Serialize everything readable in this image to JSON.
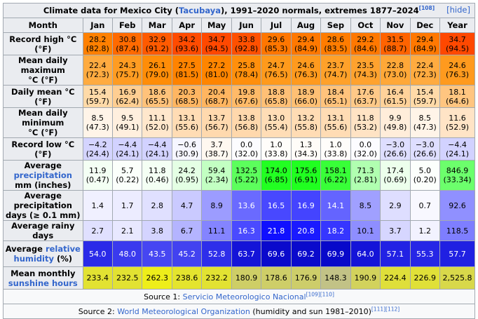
{
  "caption": {
    "prefix": "Climate data for Mexico City (",
    "location_link": "Tacubaya",
    "suffix": "), 1991–2020 normals, extremes 1877–2024",
    "ref": "[108]",
    "hide_label": "[hide]"
  },
  "header": {
    "month_label": "Month",
    "months": [
      "Jan",
      "Feb",
      "Mar",
      "Apr",
      "May",
      "Jun",
      "Jul",
      "Aug",
      "Sep",
      "Oct",
      "Nov",
      "Dec",
      "Year"
    ]
  },
  "rows": [
    {
      "name": "record-high",
      "label": [
        "Record high °C (°F)"
      ],
      "cells": [
        {
          "top": "28.2",
          "bottom": "(82.8)",
          "bg": "#ff8000",
          "fg": "#000000"
        },
        {
          "top": "30.8",
          "bottom": "(87.4)",
          "bg": "#ff6a00",
          "fg": "#000000"
        },
        {
          "top": "32.9",
          "bottom": "(91.2)",
          "bg": "#ff5a00",
          "fg": "#000000"
        },
        {
          "top": "34.2",
          "bottom": "(93.6)",
          "bg": "#ff4b00",
          "fg": "#000000"
        },
        {
          "top": "34.7",
          "bottom": "(94.5)",
          "bg": "#ff4800",
          "fg": "#000000"
        },
        {
          "top": "33.8",
          "bottom": "(92.8)",
          "bg": "#ff5000",
          "fg": "#000000"
        },
        {
          "top": "29.6",
          "bottom": "(85.3)",
          "bg": "#ff7600",
          "fg": "#000000"
        },
        {
          "top": "29.4",
          "bottom": "(84.9)",
          "bg": "#ff7800",
          "fg": "#000000"
        },
        {
          "top": "28.6",
          "bottom": "(83.5)",
          "bg": "#ff7c00",
          "fg": "#000000"
        },
        {
          "top": "29.2",
          "bottom": "(84.6)",
          "bg": "#ff7800",
          "fg": "#000000"
        },
        {
          "top": "31.5",
          "bottom": "(88.7)",
          "bg": "#ff6300",
          "fg": "#000000"
        },
        {
          "top": "29.4",
          "bottom": "(84.9)",
          "bg": "#ff7800",
          "fg": "#000000"
        },
        {
          "top": "34.7",
          "bottom": "(94.5)",
          "bg": "#ff4800",
          "fg": "#000000"
        }
      ]
    },
    {
      "name": "mean-daily-maximum",
      "label": [
        "Mean daily maximum",
        "°C (°F)"
      ],
      "cells": [
        {
          "top": "22.4",
          "bottom": "(72.3)",
          "bg": "#ffab40",
          "fg": "#000000"
        },
        {
          "top": "24.3",
          "bottom": "(75.7)",
          "bg": "#ff9c22",
          "fg": "#000000"
        },
        {
          "top": "26.1",
          "bottom": "(79.0)",
          "bg": "#ff8d08",
          "fg": "#000000"
        },
        {
          "top": "27.5",
          "bottom": "(81.5)",
          "bg": "#ff8300",
          "fg": "#000000"
        },
        {
          "top": "27.2",
          "bottom": "(81.0)",
          "bg": "#ff8500",
          "fg": "#000000"
        },
        {
          "top": "25.8",
          "bottom": "(78.4)",
          "bg": "#ff8f0c",
          "fg": "#000000"
        },
        {
          "top": "24.7",
          "bottom": "(76.5)",
          "bg": "#ff9a1c",
          "fg": "#000000"
        },
        {
          "top": "24.6",
          "bottom": "(76.3)",
          "bg": "#ff9a1e",
          "fg": "#000000"
        },
        {
          "top": "23.7",
          "bottom": "(74.7)",
          "bg": "#ffa12a",
          "fg": "#000000"
        },
        {
          "top": "23.5",
          "bottom": "(74.3)",
          "bg": "#ffa22e",
          "fg": "#000000"
        },
        {
          "top": "22.8",
          "bottom": "(73.0)",
          "bg": "#ffa838",
          "fg": "#000000"
        },
        {
          "top": "22.4",
          "bottom": "(72.3)",
          "bg": "#ffab40",
          "fg": "#000000"
        },
        {
          "top": "24.6",
          "bottom": "(76.3)",
          "bg": "#ff9a1e",
          "fg": "#000000"
        }
      ]
    },
    {
      "name": "daily-mean",
      "label": [
        "Daily mean °C (°F)"
      ],
      "cells": [
        {
          "top": "15.4",
          "bottom": "(59.7)",
          "bg": "#ffdaa8",
          "fg": "#000000"
        },
        {
          "top": "16.9",
          "bottom": "(62.4)",
          "bg": "#ffce92",
          "fg": "#000000"
        },
        {
          "top": "18.6",
          "bottom": "(65.5)",
          "bg": "#ffc27a",
          "fg": "#000000"
        },
        {
          "top": "20.3",
          "bottom": "(68.5)",
          "bg": "#ffb662",
          "fg": "#000000"
        },
        {
          "top": "20.4",
          "bottom": "(68.7)",
          "bg": "#ffb560",
          "fg": "#000000"
        },
        {
          "top": "19.8",
          "bottom": "(67.6)",
          "bg": "#ffba68",
          "fg": "#000000"
        },
        {
          "top": "18.8",
          "bottom": "(65.8)",
          "bg": "#ffc076",
          "fg": "#000000"
        },
        {
          "top": "18.9",
          "bottom": "(66.0)",
          "bg": "#ffc074",
          "fg": "#000000"
        },
        {
          "top": "18.4",
          "bottom": "(65.1)",
          "bg": "#ffc37c",
          "fg": "#000000"
        },
        {
          "top": "17.6",
          "bottom": "(63.7)",
          "bg": "#ffc988",
          "fg": "#000000"
        },
        {
          "top": "16.4",
          "bottom": "(61.5)",
          "bg": "#ffd29a",
          "fg": "#000000"
        },
        {
          "top": "15.4",
          "bottom": "(59.7)",
          "bg": "#ffdaa8",
          "fg": "#000000"
        },
        {
          "top": "18.1",
          "bottom": "(64.6)",
          "bg": "#ffc580",
          "fg": "#000000"
        }
      ]
    },
    {
      "name": "mean-daily-minimum",
      "label": [
        "Mean daily minimum",
        "°C (°F)"
      ],
      "cells": [
        {
          "top": "8.5",
          "bottom": "(47.3)",
          "bg": "#fff4e8",
          "fg": "#000000"
        },
        {
          "top": "9.5",
          "bottom": "(49.1)",
          "bg": "#ffefde",
          "fg": "#000000"
        },
        {
          "top": "11.1",
          "bottom": "(52.0)",
          "bg": "#ffe7cc",
          "fg": "#000000"
        },
        {
          "top": "13.1",
          "bottom": "(55.6)",
          "bg": "#ffdcb4",
          "fg": "#000000"
        },
        {
          "top": "13.7",
          "bottom": "(56.7)",
          "bg": "#ffd9ae",
          "fg": "#000000"
        },
        {
          "top": "13.8",
          "bottom": "(56.8)",
          "bg": "#ffd8ac",
          "fg": "#000000"
        },
        {
          "top": "13.0",
          "bottom": "(55.4)",
          "bg": "#ffddb6",
          "fg": "#000000"
        },
        {
          "top": "13.2",
          "bottom": "(55.8)",
          "bg": "#ffdcb4",
          "fg": "#000000"
        },
        {
          "top": "13.1",
          "bottom": "(55.6)",
          "bg": "#ffdcb4",
          "fg": "#000000"
        },
        {
          "top": "11.8",
          "bottom": "(53.2)",
          "bg": "#ffe3c4",
          "fg": "#000000"
        },
        {
          "top": "9.9",
          "bottom": "(49.8)",
          "bg": "#ffedda",
          "fg": "#000000"
        },
        {
          "top": "8.5",
          "bottom": "(47.3)",
          "bg": "#fff4e8",
          "fg": "#000000"
        },
        {
          "top": "11.6",
          "bottom": "(52.9)",
          "bg": "#ffe4c6",
          "fg": "#000000"
        }
      ]
    },
    {
      "name": "record-low",
      "label": [
        "Record low °C (°F)"
      ],
      "cells": [
        {
          "top": "−4.2",
          "bottom": "(24.4)",
          "bg": "#d4d4ff",
          "fg": "#000000"
        },
        {
          "top": "−4.4",
          "bottom": "(24.1)",
          "bg": "#d2d2ff",
          "fg": "#000000"
        },
        {
          "top": "−4.4",
          "bottom": "(24.1)",
          "bg": "#d2d2ff",
          "fg": "#000000"
        },
        {
          "top": "−0.6",
          "bottom": "(30.9)",
          "bg": "#f6f6ff",
          "fg": "#000000"
        },
        {
          "top": "3.7",
          "bottom": "(38.7)",
          "bg": "#fff8f0",
          "fg": "#000000"
        },
        {
          "top": "0.0",
          "bottom": "(32.0)",
          "bg": "#fcfcff",
          "fg": "#000000"
        },
        {
          "top": "1.0",
          "bottom": "(33.8)",
          "bg": "#fffdfa",
          "fg": "#000000"
        },
        {
          "top": "1.3",
          "bottom": "(34.3)",
          "bg": "#fffcf8",
          "fg": "#000000"
        },
        {
          "top": "1.0",
          "bottom": "(33.8)",
          "bg": "#fffdfa",
          "fg": "#000000"
        },
        {
          "top": "0.0",
          "bottom": "(32.0)",
          "bg": "#fcfcff",
          "fg": "#000000"
        },
        {
          "top": "−3.0",
          "bottom": "(26.6)",
          "bg": "#dedeff",
          "fg": "#000000"
        },
        {
          "top": "−3.0",
          "bottom": "(26.6)",
          "bg": "#dedeff",
          "fg": "#000000"
        },
        {
          "top": "−4.4",
          "bottom": "(24.1)",
          "bg": "#d2d2ff",
          "fg": "#000000"
        }
      ]
    },
    {
      "name": "average-precipitation",
      "label_parts": [
        [
          "Average ",
          ""
        ],
        [
          "precipitation",
          "link"
        ]
      ],
      "label_line2": "mm (inches)",
      "cells": [
        {
          "top": "11.9",
          "bottom": "(0.47)",
          "bg": "#f4fff4",
          "fg": "#000000"
        },
        {
          "top": "5.7",
          "bottom": "(0.22)",
          "bg": "#fbfffb",
          "fg": "#000000"
        },
        {
          "top": "11.8",
          "bottom": "(0.46)",
          "bg": "#f4fff4",
          "fg": "#000000"
        },
        {
          "top": "24.2",
          "bottom": "(0.95)",
          "bg": "#e4ffe4",
          "fg": "#000000"
        },
        {
          "top": "59.4",
          "bottom": "(2.34)",
          "bg": "#c2ffc2",
          "fg": "#000000"
        },
        {
          "top": "132.5",
          "bottom": "(5.22)",
          "bg": "#5cff5c",
          "fg": "#000000"
        },
        {
          "top": "174.0",
          "bottom": "(6.85)",
          "bg": "#22ff22",
          "fg": "#000000"
        },
        {
          "top": "175.6",
          "bottom": "(6.91)",
          "bg": "#20ff20",
          "fg": "#000000"
        },
        {
          "top": "158.1",
          "bottom": "(6.22)",
          "bg": "#38ff38",
          "fg": "#000000"
        },
        {
          "top": "71.3",
          "bottom": "(2.81)",
          "bg": "#b0ffb0",
          "fg": "#000000"
        },
        {
          "top": "17.4",
          "bottom": "(0.69)",
          "bg": "#ecffec",
          "fg": "#000000"
        },
        {
          "top": "5.0",
          "bottom": "(0.20)",
          "bg": "#fcfffc",
          "fg": "#000000"
        },
        {
          "top": "846.9",
          "bottom": "(33.34)",
          "bg": "#6cff6c",
          "fg": "#000000"
        }
      ]
    },
    {
      "name": "average-precipitation-days",
      "label": [
        "Average precipitation",
        "days (≥ 0.1 mm)"
      ],
      "cells": [
        {
          "top": "1.4",
          "bg": "#f0f0ff",
          "fg": "#000000"
        },
        {
          "top": "1.7",
          "bg": "#ececff",
          "fg": "#000000"
        },
        {
          "top": "2.8",
          "bg": "#e0e0ff",
          "fg": "#000000"
        },
        {
          "top": "4.7",
          "bg": "#cacaff",
          "fg": "#000000"
        },
        {
          "top": "8.9",
          "bg": "#9c9cff",
          "fg": "#000000"
        },
        {
          "top": "13.6",
          "bg": "#6a6aff",
          "fg": "#ffffff"
        },
        {
          "top": "16.5",
          "bg": "#4848ff",
          "fg": "#ffffff"
        },
        {
          "top": "16.9",
          "bg": "#4444ff",
          "fg": "#ffffff"
        },
        {
          "top": "14.1",
          "bg": "#6464ff",
          "fg": "#ffffff"
        },
        {
          "top": "8.5",
          "bg": "#a0a0ff",
          "fg": "#000000"
        },
        {
          "top": "2.9",
          "bg": "#dedeff",
          "fg": "#000000"
        },
        {
          "top": "0.7",
          "bg": "#f8f8ff",
          "fg": "#000000"
        },
        {
          "top": "92.6",
          "bg": "#9090ff",
          "fg": "#000000"
        }
      ]
    },
    {
      "name": "average-rainy-days",
      "label": [
        "Average rainy days"
      ],
      "cells": [
        {
          "top": "2.7",
          "bg": "#e0e0ff",
          "fg": "#000000"
        },
        {
          "top": "2.1",
          "bg": "#e8e8ff",
          "fg": "#000000"
        },
        {
          "top": "3.8",
          "bg": "#d4d4ff",
          "fg": "#000000"
        },
        {
          "top": "6.7",
          "bg": "#b4b4ff",
          "fg": "#000000"
        },
        {
          "top": "11.1",
          "bg": "#8484ff",
          "fg": "#000000"
        },
        {
          "top": "16.3",
          "bg": "#4a4aff",
          "fg": "#ffffff"
        },
        {
          "top": "21.8",
          "bg": "#1010ff",
          "fg": "#ffffff"
        },
        {
          "top": "20.8",
          "bg": "#1a1aff",
          "fg": "#ffffff"
        },
        {
          "top": "18.2",
          "bg": "#3636ff",
          "fg": "#ffffff"
        },
        {
          "top": "10.1",
          "bg": "#8e8eff",
          "fg": "#000000"
        },
        {
          "top": "3.7",
          "bg": "#d6d6ff",
          "fg": "#000000"
        },
        {
          "top": "1.2",
          "bg": "#f2f2ff",
          "fg": "#000000"
        },
        {
          "top": "118.5",
          "bg": "#7e7eff",
          "fg": "#000000"
        }
      ]
    },
    {
      "name": "average-relative-humidity",
      "label_parts": [
        [
          "Average ",
          ""
        ],
        [
          "relative",
          "link"
        ]
      ],
      "label_line2_parts": [
        [
          "humidity",
          "link"
        ],
        [
          " (%)",
          ""
        ]
      ],
      "cells": [
        {
          "top": "54.0",
          "bg": "#2a2ae8",
          "fg": "#ffffff"
        },
        {
          "top": "48.0",
          "bg": "#3a3aee",
          "fg": "#ffffff"
        },
        {
          "top": "43.5",
          "bg": "#4646f2",
          "fg": "#ffffff"
        },
        {
          "top": "45.2",
          "bg": "#4242f0",
          "fg": "#ffffff"
        },
        {
          "top": "52.8",
          "bg": "#2e2eea",
          "fg": "#ffffff"
        },
        {
          "top": "63.7",
          "bg": "#1414d8",
          "fg": "#ffffff"
        },
        {
          "top": "69.6",
          "bg": "#0a0acc",
          "fg": "#ffffff"
        },
        {
          "top": "69.2",
          "bg": "#0a0acc",
          "fg": "#ffffff"
        },
        {
          "top": "69.9",
          "bg": "#0808ca",
          "fg": "#ffffff"
        },
        {
          "top": "64.0",
          "bg": "#1414d8",
          "fg": "#ffffff"
        },
        {
          "top": "57.1",
          "bg": "#2222e4",
          "fg": "#ffffff"
        },
        {
          "top": "55.3",
          "bg": "#2626e6",
          "fg": "#ffffff"
        },
        {
          "top": "57.7",
          "bg": "#2020e2",
          "fg": "#ffffff"
        }
      ]
    },
    {
      "name": "mean-monthly-sunshine-hours",
      "label": [
        "Mean monthly"
      ],
      "label_line2_parts": [
        [
          "sunshine hours",
          "link"
        ]
      ],
      "cells": [
        {
          "top": "233.4",
          "bg": "#e2e232",
          "fg": "#000000"
        },
        {
          "top": "232.5",
          "bg": "#e2e232",
          "fg": "#000000"
        },
        {
          "top": "262.3",
          "bg": "#eeee1a",
          "fg": "#000000"
        },
        {
          "top": "238.6",
          "bg": "#e4e42e",
          "fg": "#000000"
        },
        {
          "top": "232.2",
          "bg": "#e2e232",
          "fg": "#000000"
        },
        {
          "top": "180.9",
          "bg": "#cece66",
          "fg": "#000000"
        },
        {
          "top": "178.6",
          "bg": "#cece68",
          "fg": "#000000"
        },
        {
          "top": "176.9",
          "bg": "#cdcd6a",
          "fg": "#000000"
        },
        {
          "top": "148.3",
          "bg": "#c2c286",
          "fg": "#000000"
        },
        {
          "top": "190.9",
          "bg": "#d2d25c",
          "fg": "#000000"
        },
        {
          "top": "224.4",
          "bg": "#dfdf3a",
          "fg": "#000000"
        },
        {
          "top": "226.9",
          "bg": "#e0e038",
          "fg": "#000000"
        },
        {
          "top": "2,525.8",
          "bg": "#d8d84a",
          "fg": "#000000"
        }
      ]
    }
  ],
  "sources": [
    {
      "prefix": "Source 1: ",
      "link": "Servicio Meteorologico Nacional",
      "refs": "[109][110]",
      "suffix": ""
    },
    {
      "prefix": "Source 2: ",
      "link": "World Meteorological Organization",
      "refs": "",
      "suffix": " (humidity and sun 1981–2010)",
      "refs2": "[111][112]"
    }
  ]
}
